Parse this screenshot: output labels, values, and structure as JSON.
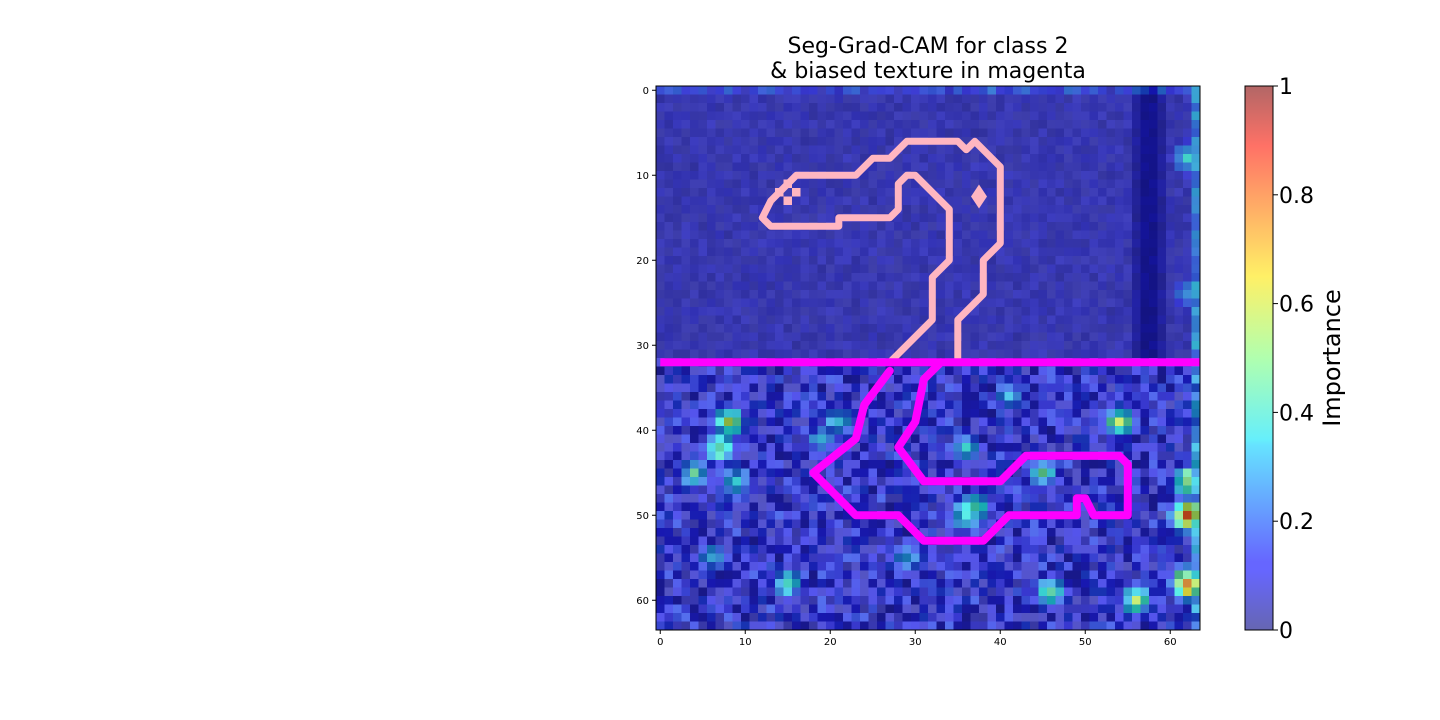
{
  "chart_data": {
    "type": "heatmap",
    "title_lines": [
      "Seg-Grad-CAM for class 2",
      "& biased texture in magenta"
    ],
    "grid_size": 64,
    "xlim": [
      -0.5,
      63.5
    ],
    "ylim": [
      63.5,
      -0.5
    ],
    "x_ticks": [
      0,
      10,
      20,
      30,
      40,
      50,
      60
    ],
    "y_ticks": [
      0,
      10,
      20,
      30,
      40,
      50,
      60
    ],
    "colormap": "jet",
    "alpha_overlay": 0.6,
    "colorbar": {
      "label": "Importance",
      "range": [
        0,
        1
      ],
      "ticks": [
        0,
        0.2,
        0.4,
        0.6,
        0.8,
        1
      ],
      "tick_labels": [
        "0",
        "0.2",
        "0.4",
        "0.6",
        "0.8",
        "1"
      ]
    },
    "texture_boundary_row": 32,
    "magenta_color": "#ff00ff",
    "pink_color": "#ffb6c1",
    "segmentation_outline_upper": [
      [
        12,
        15
      ],
      [
        13,
        13
      ],
      [
        16,
        10
      ],
      [
        23,
        10
      ],
      [
        25,
        8
      ],
      [
        27,
        8
      ],
      [
        29,
        6
      ],
      [
        35,
        6
      ],
      [
        36,
        7
      ],
      [
        37,
        6
      ],
      [
        40,
        9
      ],
      [
        40,
        18
      ],
      [
        38,
        20
      ],
      [
        38,
        24
      ],
      [
        35,
        27
      ],
      [
        35,
        32
      ]
    ],
    "segmentation_outline_upper_inner": [
      [
        12,
        15
      ],
      [
        13,
        16
      ],
      [
        21,
        16
      ],
      [
        21,
        15
      ],
      [
        27,
        15
      ],
      [
        28,
        14
      ],
      [
        28,
        11
      ],
      [
        29,
        10
      ],
      [
        30,
        10
      ],
      [
        34,
        14
      ],
      [
        34,
        20
      ],
      [
        32,
        22
      ],
      [
        32,
        27
      ],
      [
        27,
        32
      ]
    ],
    "magenta_region": [
      [
        27,
        33
      ],
      [
        24,
        37
      ],
      [
        23,
        41
      ],
      [
        18,
        45
      ],
      [
        23,
        50
      ],
      [
        28,
        50
      ],
      [
        31,
        53
      ],
      [
        38,
        53
      ],
      [
        41,
        50
      ],
      [
        49,
        50
      ],
      [
        49,
        48
      ],
      [
        50,
        48
      ],
      [
        51,
        50
      ],
      [
        55,
        50
      ],
      [
        55,
        44
      ],
      [
        54,
        43
      ],
      [
        43,
        43
      ],
      [
        40,
        46
      ],
      [
        31,
        46
      ],
      [
        28,
        42
      ],
      [
        30,
        39
      ],
      [
        31,
        34
      ],
      [
        32,
        33
      ],
      [
        33,
        32
      ]
    ],
    "hotspots": [
      {
        "x": 7,
        "y": 42,
        "v": 0.55
      },
      {
        "x": 8,
        "y": 39,
        "v": 0.62
      },
      {
        "x": 9,
        "y": 46,
        "v": 0.4
      },
      {
        "x": 4,
        "y": 45,
        "v": 0.45
      },
      {
        "x": 19,
        "y": 41,
        "v": 0.35
      },
      {
        "x": 21,
        "y": 39,
        "v": 0.38
      },
      {
        "x": 29,
        "y": 55,
        "v": 0.35
      },
      {
        "x": 36,
        "y": 42,
        "v": 0.4
      },
      {
        "x": 36,
        "y": 50,
        "v": 0.48
      },
      {
        "x": 37,
        "y": 49,
        "v": 0.55
      },
      {
        "x": 41,
        "y": 36,
        "v": 0.35
      },
      {
        "x": 45,
        "y": 45,
        "v": 0.45
      },
      {
        "x": 46,
        "y": 59,
        "v": 0.5
      },
      {
        "x": 54,
        "y": 39,
        "v": 0.6
      },
      {
        "x": 56,
        "y": 60,
        "v": 0.55
      },
      {
        "x": 62,
        "y": 50,
        "v": 0.9
      },
      {
        "x": 62,
        "y": 58,
        "v": 0.85
      },
      {
        "x": 62,
        "y": 46,
        "v": 0.6
      },
      {
        "x": 62,
        "y": 8,
        "v": 0.4
      },
      {
        "x": 62,
        "y": 24,
        "v": 0.3
      },
      {
        "x": 15,
        "y": 58,
        "v": 0.45
      },
      {
        "x": 6,
        "y": 55,
        "v": 0.35
      }
    ]
  }
}
